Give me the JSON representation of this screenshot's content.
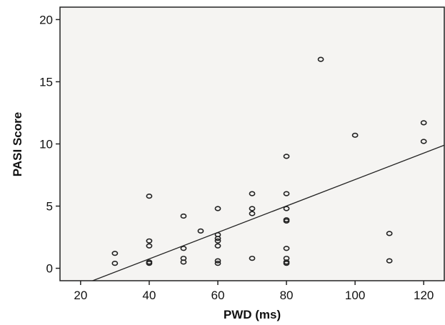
{
  "chart_data": {
    "type": "scatter",
    "title": "",
    "xlabel": "PWD (ms)",
    "ylabel": "PASI Score",
    "xlim": [
      14,
      126
    ],
    "ylim": [
      -1,
      21
    ],
    "xticks": [
      20,
      40,
      60,
      80,
      100,
      120
    ],
    "yticks": [
      0,
      5,
      10,
      15,
      20
    ],
    "grid": false,
    "legend": "none",
    "background_color": "#f5f4f2",
    "marker_color": "#222222",
    "points": [
      {
        "x": 30,
        "y": 1.2
      },
      {
        "x": 30,
        "y": 0.4
      },
      {
        "x": 40,
        "y": 5.8
      },
      {
        "x": 40,
        "y": 2.2
      },
      {
        "x": 40,
        "y": 1.8
      },
      {
        "x": 40,
        "y": 0.5
      },
      {
        "x": 40,
        "y": 0.4
      },
      {
        "x": 50,
        "y": 4.2
      },
      {
        "x": 50,
        "y": 1.6
      },
      {
        "x": 50,
        "y": 0.8
      },
      {
        "x": 50,
        "y": 0.5
      },
      {
        "x": 55,
        "y": 3.0
      },
      {
        "x": 60,
        "y": 4.8
      },
      {
        "x": 60,
        "y": 2.7
      },
      {
        "x": 60,
        "y": 2.4
      },
      {
        "x": 60,
        "y": 2.2
      },
      {
        "x": 60,
        "y": 1.8
      },
      {
        "x": 60,
        "y": 0.6
      },
      {
        "x": 60,
        "y": 0.4
      },
      {
        "x": 70,
        "y": 6.0
      },
      {
        "x": 70,
        "y": 4.8
      },
      {
        "x": 70,
        "y": 4.4
      },
      {
        "x": 70,
        "y": 0.8
      },
      {
        "x": 80,
        "y": 9.0
      },
      {
        "x": 80,
        "y": 6.0
      },
      {
        "x": 80,
        "y": 4.8
      },
      {
        "x": 80,
        "y": 3.9
      },
      {
        "x": 80,
        "y": 3.8
      },
      {
        "x": 80,
        "y": 1.6
      },
      {
        "x": 80,
        "y": 0.8
      },
      {
        "x": 80,
        "y": 0.5
      },
      {
        "x": 80,
        "y": 0.4
      },
      {
        "x": 90,
        "y": 16.8
      },
      {
        "x": 100,
        "y": 10.7
      },
      {
        "x": 110,
        "y": 2.8
      },
      {
        "x": 110,
        "y": 0.6
      },
      {
        "x": 120,
        "y": 11.7
      },
      {
        "x": 120,
        "y": 10.2
      }
    ],
    "fit_line": {
      "x1": 23.5,
      "y1": -1,
      "x2": 126,
      "y2": 9.9
    }
  }
}
